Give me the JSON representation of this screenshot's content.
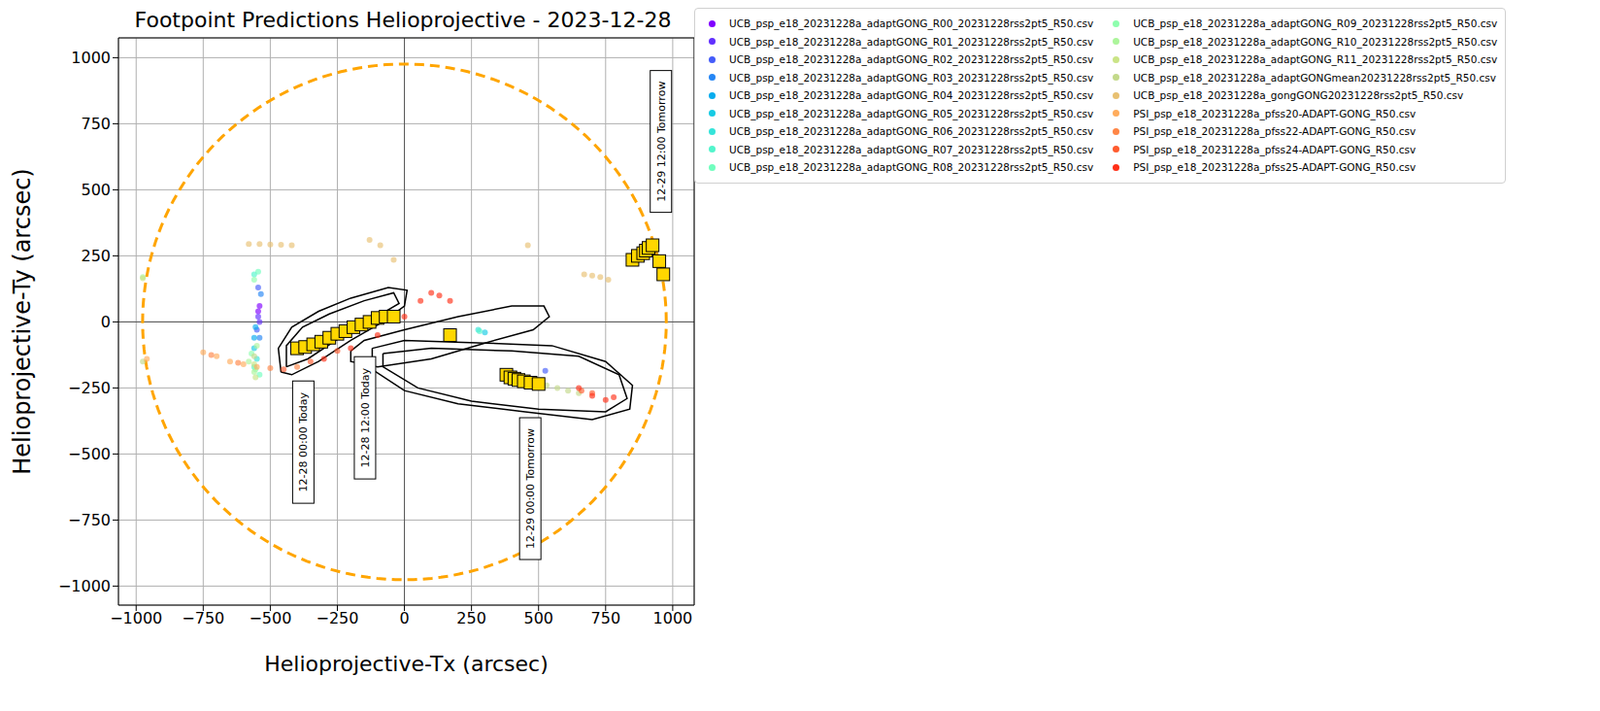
{
  "chart_data": {
    "type": "scatter",
    "title": "Footpoint Predictions Helioprojective - 2023-12-28",
    "x_label": "Helioprojective-Tx (arcsec)",
    "y_label": "Helioprojective-Ty (arcsec)",
    "xlim": [
      -1066,
      1080
    ],
    "ylim": [
      -1072,
      1075
    ],
    "xticks": [
      {
        "value": -1000,
        "label": "−1000"
      },
      {
        "value": -750,
        "label": "−750"
      },
      {
        "value": -500,
        "label": "−500"
      },
      {
        "value": -250,
        "label": "−250"
      },
      0,
      250,
      500,
      750,
      1000
    ],
    "yticks": [
      {
        "value": -1000,
        "label": "−1000"
      },
      {
        "value": -750,
        "label": "−750"
      },
      {
        "value": -500,
        "label": "−500"
      },
      {
        "value": -250,
        "label": "−250"
      },
      0,
      250,
      500,
      750,
      1000
    ],
    "grid": true,
    "legend": "right",
    "marker": "circle",
    "reference_lines": {
      "x": 0,
      "y": 0
    },
    "limb": {
      "radius": 976,
      "color": "#ffa500",
      "line_style": "dashed"
    },
    "series": [
      {
        "name": "UCB_psp_e18_20231228a_adaptGONG_R00_20231228rss2pt5_R50.csv",
        "color": "#8000ff",
        "x": [
          -540,
          -545
        ],
        "y": [
          60,
          40
        ]
      },
      {
        "name": "UCB_psp_e18_20231228a_adaptGONG_R01_20231228rss2pt5_R50.csv",
        "color": "#612ffe",
        "x": [
          -545,
          -540
        ],
        "y": [
          20,
          0
        ]
      },
      {
        "name": "UCB_psp_e18_20231228a_adaptGONG_R02_20231228rss2pt5_R50.csv",
        "color": "#445cfa",
        "x": [
          -550,
          -545,
          525
        ],
        "y": [
          -30,
          130,
          -185
        ]
      },
      {
        "name": "UCB_psp_e18_20231228a_adaptGONG_R03_20231228rss2pt5_R50.csv",
        "color": "#2586f5",
        "x": [
          -535,
          -540
        ],
        "y": [
          105,
          -60
        ]
      },
      {
        "name": "UCB_psp_e18_20231228a_adaptGONG_R04_20231228rss2pt5_R50.csv",
        "color": "#07acee",
        "x": [
          -555,
          -560
        ],
        "y": [
          -20,
          -60
        ]
      },
      {
        "name": "UCB_psp_e18_20231228a_adaptGONG_R05_20231228rss2pt5_R50.csv",
        "color": "#16cbe4",
        "x": [
          -560,
          300
        ],
        "y": [
          -100,
          -40
        ]
      },
      {
        "name": "UCB_psp_e18_20231228a_adaptGONG_R06_20231228rss2pt5_R50.csv",
        "color": "#34e4da",
        "x": [
          -550,
          275
        ],
        "y": [
          -140,
          -30
        ]
      },
      {
        "name": "UCB_psp_e18_20231228a_adaptGONG_R07_20231228rss2pt5_R50.csv",
        "color": "#52f5cc",
        "x": [
          -560,
          -560,
          280
        ],
        "y": [
          -170,
          180,
          -35
        ]
      },
      {
        "name": "UCB_psp_e18_20231228a_adaptGONG_R08_20231228rss2pt5_R50.csv",
        "color": "#70febe",
        "x": [
          -545,
          -540
        ],
        "y": [
          190,
          -200
        ]
      },
      {
        "name": "UCB_psp_e18_20231228a_adaptGONG_R09_20231228rss2pt5_R50.csv",
        "color": "#8efeae",
        "x": [
          -560,
          -555,
          -570
        ],
        "y": [
          160,
          -180,
          -120
        ]
      },
      {
        "name": "UCB_psp_e18_20231228a_adaptGONG_R10_20231228rss2pt5_R50.csv",
        "color": "#acf59b",
        "x": [
          -560,
          -550,
          -975,
          -580
        ],
        "y": [
          -190,
          -90,
          170,
          -150
        ]
      },
      {
        "name": "UCB_psp_e18_20231228a_adaptGONG_R11_20231228rss2pt5_R50.csv",
        "color": "#cae486",
        "x": [
          -555,
          -560,
          -975,
          -100
        ],
        "y": [
          -210,
          -160,
          165,
          10
        ]
      },
      {
        "name": "UCB_psp_e18_20231228a_adaptGONGmean20231228rss2pt5_R50.csv",
        "color": "#c3d98a",
        "x": [
          530,
          570,
          610,
          650,
          -975,
          -560
        ],
        "y": [
          -240,
          -250,
          -260,
          -270,
          -150,
          -130
        ]
      },
      {
        "name": "UCB_psp_e18_20231228a_gongGONG20231228rss2pt5_R50.csv",
        "color": "#e8c071",
        "x": [
          -580,
          -540,
          -500,
          -460,
          -420,
          -130,
          -90,
          -40,
          460,
          670,
          700,
          730,
          760
        ],
        "y": [
          295,
          295,
          293,
          292,
          290,
          310,
          290,
          235,
          290,
          180,
          175,
          170,
          160
        ]
      },
      {
        "name": "PSI_psp_e18_20231228a_pfss20-ADAPT-GONG_R50.csv",
        "color": "#ffac5c",
        "x": [
          -750,
          -700,
          -650,
          -600,
          -550,
          -960
        ],
        "y": [
          -115,
          -130,
          -150,
          -160,
          -170,
          -140
        ]
      },
      {
        "name": "PSI_psp_e18_20231228a_pfss22-ADAPT-GONG_R50.csv",
        "color": "#ff8646",
        "x": [
          -720,
          -620,
          -500,
          -400
        ],
        "y": [
          -125,
          -155,
          -175,
          -170
        ]
      },
      {
        "name": "PSI_psp_e18_20231228a_pfss24-ADAPT-GONG_R50.csv",
        "color": "#ff5c2f",
        "x": [
          -450,
          -350,
          -250,
          660,
          700
        ],
        "y": [
          -180,
          -150,
          -110,
          -260,
          -270
        ]
      },
      {
        "name": "PSI_psp_e18_20231228a_pfss25-ADAPT-GONG_R50.csv",
        "color": "#ff2f17",
        "x": [
          -300,
          -200,
          -100,
          0,
          60,
          100,
          130,
          170,
          650,
          700,
          750,
          780
        ],
        "y": [
          -140,
          -100,
          -50,
          20,
          80,
          110,
          100,
          80,
          -250,
          -280,
          -295,
          -285
        ]
      }
    ],
    "footpoints": {
      "color": "#ffd700",
      "marker": "square",
      "x": [
        -400,
        -370,
        -340,
        -310,
        -280,
        -250,
        -220,
        -190,
        -160,
        -130,
        -100,
        -70,
        -40,
        170,
        380,
        395,
        410,
        425,
        445,
        470,
        500,
        850,
        870,
        890,
        900,
        910,
        925,
        950,
        965
      ],
      "y": [
        -100,
        -95,
        -85,
        -75,
        -60,
        -45,
        -35,
        -20,
        -10,
        0,
        15,
        20,
        20,
        -50,
        -200,
        -210,
        -215,
        -220,
        -225,
        -230,
        -235,
        235,
        250,
        260,
        270,
        280,
        290,
        230,
        180
      ]
    },
    "contours": [
      {
        "x": [
          -460,
          -470,
          -420,
          -320,
          -200,
          -60,
          10,
          0,
          -80,
          -200,
          -320,
          -420,
          -460
        ],
        "y": [
          -190,
          -100,
          -20,
          40,
          90,
          130,
          120,
          60,
          0,
          -70,
          -150,
          -200,
          -190
        ]
      },
      {
        "x": [
          -440,
          -440,
          -380,
          -280,
          -150,
          -40,
          -20,
          -120,
          -240,
          -360,
          -440
        ],
        "y": [
          -170,
          -90,
          -20,
          30,
          80,
          110,
          70,
          10,
          -60,
          -140,
          -170
        ]
      },
      {
        "x": [
          -200,
          -150,
          0,
          200,
          400,
          520,
          540,
          480,
          300,
          100,
          -100,
          -200,
          -200
        ],
        "y": [
          -110,
          -70,
          -30,
          20,
          60,
          60,
          20,
          -30,
          -80,
          -140,
          -170,
          -150,
          -110
        ]
      },
      {
        "x": [
          -120,
          0,
          300,
          550,
          750,
          850,
          840,
          700,
          450,
          200,
          0,
          -120,
          -120
        ],
        "y": [
          -100,
          -70,
          -80,
          -90,
          -150,
          -240,
          -330,
          -370,
          -340,
          -310,
          -260,
          -180,
          -100
        ]
      },
      {
        "x": [
          -80,
          100,
          400,
          650,
          800,
          830,
          750,
          500,
          250,
          50,
          -80,
          -80
        ],
        "y": [
          -120,
          -100,
          -110,
          -130,
          -200,
          -290,
          -340,
          -330,
          -300,
          -250,
          -170,
          -120
        ]
      }
    ],
    "annotations": [
      {
        "text": "12-28 00:00 Today",
        "x": -377,
        "y": -455
      },
      {
        "text": "12-28 12:00 Today",
        "x": -147,
        "y": -363
      },
      {
        "text": "12-29 00:00 Tomorrow",
        "x": 469,
        "y": -631
      },
      {
        "text": "12-29 12:00 Tomorrow",
        "x": 956,
        "y": 683
      }
    ]
  }
}
